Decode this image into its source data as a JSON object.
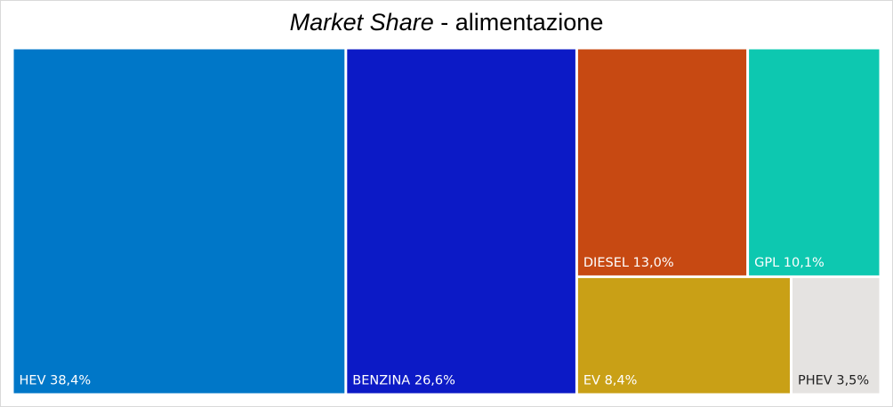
{
  "chart_data": {
    "type": "treemap",
    "title": {
      "italic_part": "Market Share",
      "rest": " - alimentazione"
    },
    "items": [
      {
        "name": "HEV",
        "value": 38.4,
        "label": "HEV 38,4%",
        "color": "#0077c8",
        "text_color": "#ffffff"
      },
      {
        "name": "BENZINA",
        "value": 26.6,
        "label": "BENZINA 26,6%",
        "color": "#0c1ac6",
        "text_color": "#ffffff"
      },
      {
        "name": "DIESEL",
        "value": 13.0,
        "label": "DIESEL 13,0%",
        "color": "#c74912",
        "text_color": "#ffffff"
      },
      {
        "name": "GPL",
        "value": 10.1,
        "label": "GPL 10,1%",
        "color": "#0dc8b0",
        "text_color": "#ffffff"
      },
      {
        "name": "EV",
        "value": 8.4,
        "label": "EV 8,4%",
        "color": "#c9a016",
        "text_color": "#ffffff"
      },
      {
        "name": "PHEV",
        "value": 3.5,
        "label": "PHEV 3,5%",
        "color": "#e5e3e1",
        "text_color": "#222222"
      }
    ]
  }
}
